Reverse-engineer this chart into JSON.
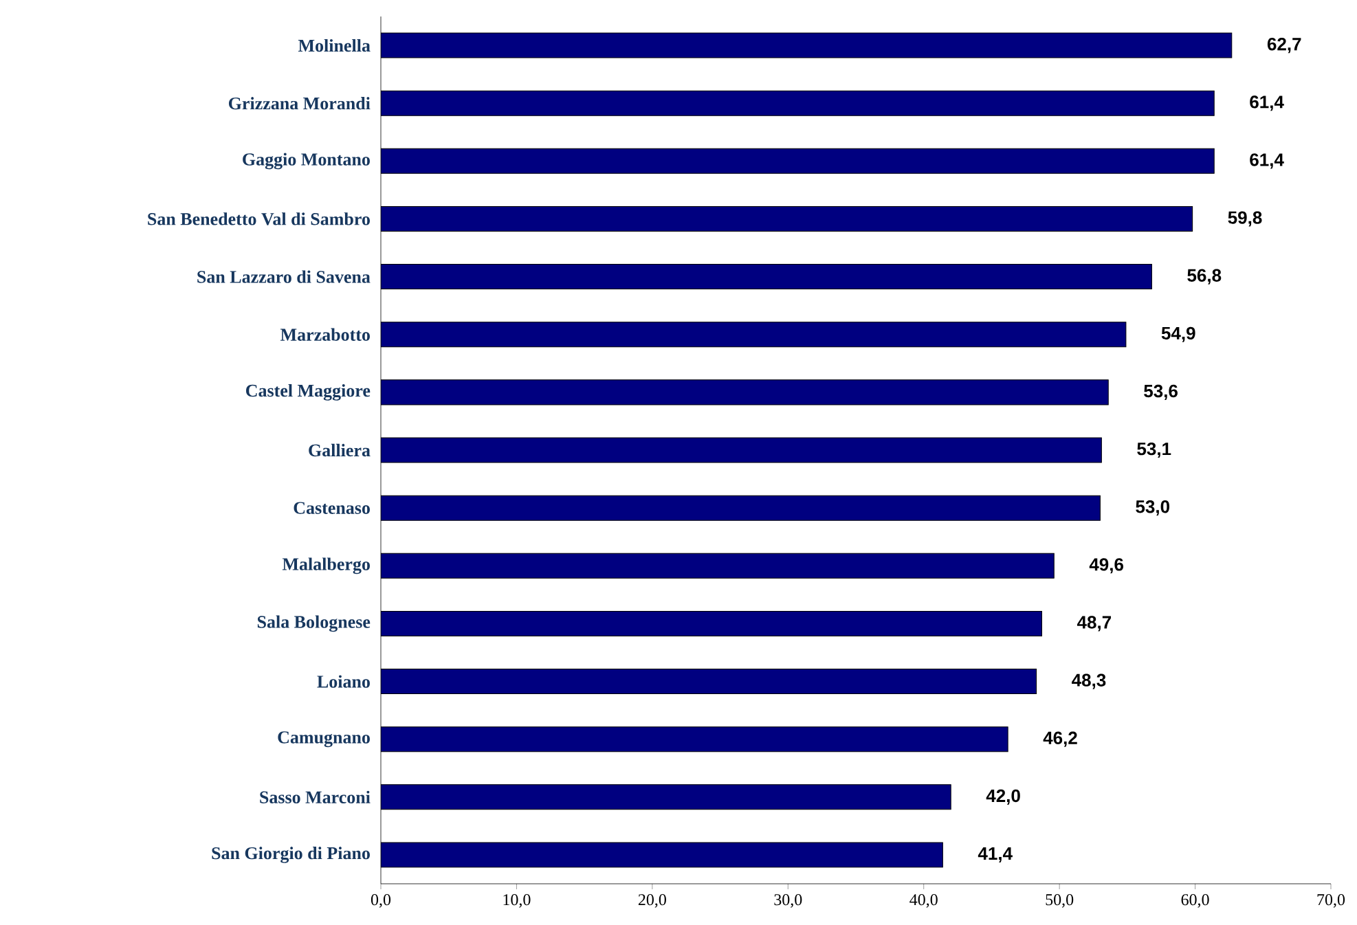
{
  "chart_data": {
    "type": "bar",
    "orientation": "horizontal",
    "categories": [
      "Molinella",
      "Grizzana Morandi",
      "Gaggio Montano",
      "San Benedetto Val di Sambro",
      "San Lazzaro di Savena",
      "Marzabotto",
      "Castel Maggiore",
      "Galliera",
      "Castenaso",
      "Malalbergo",
      "Sala Bolognese",
      "Loiano",
      "Camugnano",
      "Sasso Marconi",
      "San Giorgio di Piano"
    ],
    "values": [
      62.7,
      61.4,
      61.4,
      59.8,
      56.8,
      54.9,
      53.6,
      53.1,
      53.0,
      49.6,
      48.7,
      48.3,
      46.2,
      42.0,
      41.4
    ],
    "value_labels": [
      "62,7",
      "61,4",
      "61,4",
      "59,8",
      "56,8",
      "54,9",
      "53,6",
      "53,1",
      "53,0",
      "49,6",
      "48,7",
      "48,3",
      "46,2",
      "42,0",
      "41,4"
    ],
    "color": "#000080",
    "xlim": [
      0,
      70
    ],
    "xticks": [
      {
        "value": 0,
        "label": "0,0"
      },
      {
        "value": 10,
        "label": "10,0"
      },
      {
        "value": 20,
        "label": "20,0"
      },
      {
        "value": 30,
        "label": "30,0"
      },
      {
        "value": 40,
        "label": "40,0"
      },
      {
        "value": 50,
        "label": "50,0"
      },
      {
        "value": 60,
        "label": "60,0"
      },
      {
        "value": 70,
        "label": "70,0"
      }
    ]
  }
}
